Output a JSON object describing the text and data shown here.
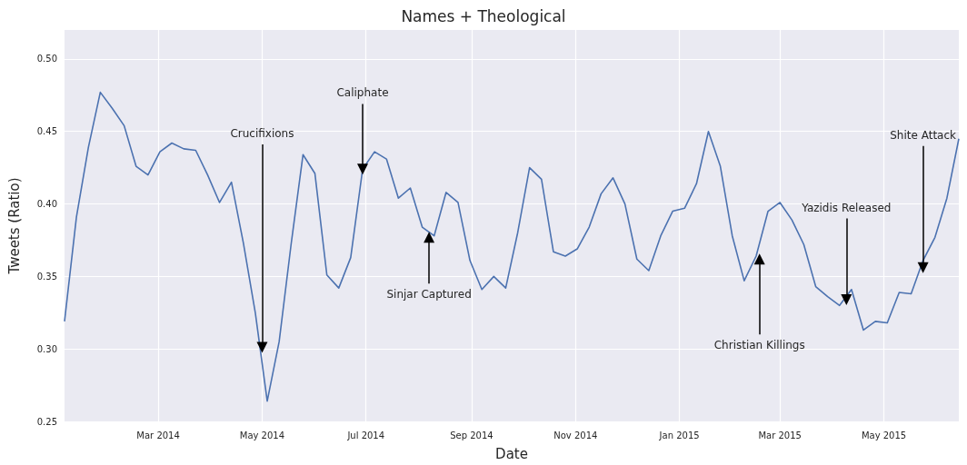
{
  "chart_data": {
    "type": "line",
    "title": "Names + Theological",
    "xlabel": "Date",
    "ylabel": "Tweets (Ratio)",
    "x": [
      "2014-01-05",
      "2014-01-12",
      "2014-01-19",
      "2014-01-26",
      "2014-02-02",
      "2014-02-09",
      "2014-02-16",
      "2014-02-23",
      "2014-03-02",
      "2014-03-09",
      "2014-03-16",
      "2014-03-23",
      "2014-03-30",
      "2014-04-06",
      "2014-04-13",
      "2014-04-20",
      "2014-04-27",
      "2014-05-04",
      "2014-05-11",
      "2014-05-18",
      "2014-05-25",
      "2014-06-01",
      "2014-06-08",
      "2014-06-15",
      "2014-06-22",
      "2014-06-29",
      "2014-07-06",
      "2014-07-13",
      "2014-07-20",
      "2014-07-27",
      "2014-08-03",
      "2014-08-10",
      "2014-08-17",
      "2014-08-24",
      "2014-08-31",
      "2014-09-07",
      "2014-09-14",
      "2014-09-21",
      "2014-09-28",
      "2014-10-05",
      "2014-10-12",
      "2014-10-19",
      "2014-10-26",
      "2014-11-02",
      "2014-11-09",
      "2014-11-16",
      "2014-11-23",
      "2014-11-30",
      "2014-12-07",
      "2014-12-14",
      "2014-12-21",
      "2014-12-28",
      "2015-01-04",
      "2015-01-11",
      "2015-01-18",
      "2015-01-25",
      "2015-02-01",
      "2015-02-08",
      "2015-02-15",
      "2015-02-22",
      "2015-03-01",
      "2015-03-08",
      "2015-03-15",
      "2015-03-22",
      "2015-03-29",
      "2015-04-05",
      "2015-04-12",
      "2015-04-19",
      "2015-04-26",
      "2015-05-03",
      "2015-05-10",
      "2015-05-17",
      "2015-05-24",
      "2015-05-31",
      "2015-06-07",
      "2015-06-14"
    ],
    "series": [
      {
        "color": "#4c72b0",
        "values": [
          0.319,
          0.391,
          0.439,
          0.477,
          0.466,
          0.454,
          0.426,
          0.42,
          0.436,
          0.442,
          0.438,
          0.437,
          0.42,
          0.401,
          0.415,
          0.373,
          0.325,
          0.264,
          0.305,
          0.372,
          0.434,
          0.421,
          0.351,
          0.342,
          0.363,
          0.424,
          0.436,
          0.431,
          0.404,
          0.411,
          0.384,
          0.378,
          0.408,
          0.401,
          0.361,
          0.341,
          0.35,
          0.342,
          0.38,
          0.425,
          0.417,
          0.367,
          0.364,
          0.369,
          0.384,
          0.407,
          0.418,
          0.4,
          0.362,
          0.354,
          0.378,
          0.395,
          0.397,
          0.414,
          0.45,
          0.426,
          0.378,
          0.347,
          0.364,
          0.395,
          0.401,
          0.389,
          0.372,
          0.343,
          0.336,
          0.33,
          0.341,
          0.313,
          0.319,
          0.318,
          0.339,
          0.338,
          0.361,
          0.377,
          0.404,
          0.445
        ]
      }
    ],
    "xlim": [
      "2014-01-05",
      "2015-06-14"
    ],
    "xticks": [
      {
        "value": "2014-03-01",
        "label": "Mar 2014"
      },
      {
        "value": "2014-05-01",
        "label": "May 2014"
      },
      {
        "value": "2014-07-01",
        "label": "Jul 2014"
      },
      {
        "value": "2014-09-01",
        "label": "Sep 2014"
      },
      {
        "value": "2014-11-01",
        "label": "Nov 2014"
      },
      {
        "value": "2015-01-01",
        "label": "Jan 2015"
      },
      {
        "value": "2015-03-01",
        "label": "Mar 2015"
      },
      {
        "value": "2015-05-01",
        "label": "May 2015"
      }
    ],
    "ylim": [
      0.25,
      0.52
    ],
    "yticks": [
      {
        "value": 0.25,
        "label": "0.25"
      },
      {
        "value": 0.3,
        "label": "0.30"
      },
      {
        "value": 0.35,
        "label": "0.35"
      },
      {
        "value": 0.4,
        "label": "0.40"
      },
      {
        "value": 0.45,
        "label": "0.45"
      },
      {
        "value": 0.5,
        "label": "0.50"
      }
    ],
    "grid": true,
    "line_style": "solid",
    "marker": "none",
    "annotations": [
      {
        "text": "Crucifixions",
        "x": "2014-05-01",
        "y": 0.301
      },
      {
        "text": "Caliphate",
        "x": "2014-06-29",
        "y": 0.424
      },
      {
        "text": "Sinjar Captured",
        "x": "2014-08-07",
        "y": 0.377
      },
      {
        "text": "Christian Killings",
        "x": "2015-02-17",
        "y": 0.362
      },
      {
        "text": "Yazidis Released",
        "x": "2015-04-09",
        "y": 0.334
      },
      {
        "text": "Shite Attack",
        "x": "2015-05-24",
        "y": 0.356
      }
    ]
  }
}
